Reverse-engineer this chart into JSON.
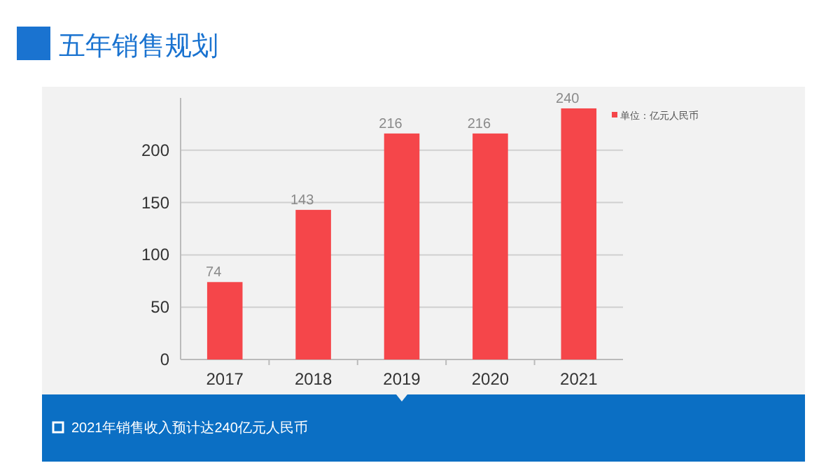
{
  "chart_data": {
    "type": "bar",
    "title": "五年销售规划",
    "categories": [
      "2017",
      "2018",
      "2019",
      "2020",
      "2021"
    ],
    "series": [
      {
        "name": "单位：亿元人民币",
        "color": "#f5464a",
        "values": [
          74,
          143,
          216,
          216,
          240
        ]
      }
    ],
    "ylim": [
      0,
      250
    ],
    "yticks": [
      0,
      50,
      100,
      150,
      200
    ],
    "grid": "y",
    "legend": "top right",
    "data_labels": true,
    "annotations": [
      "2021年销售收入预计达240亿元人民币"
    ]
  }
}
